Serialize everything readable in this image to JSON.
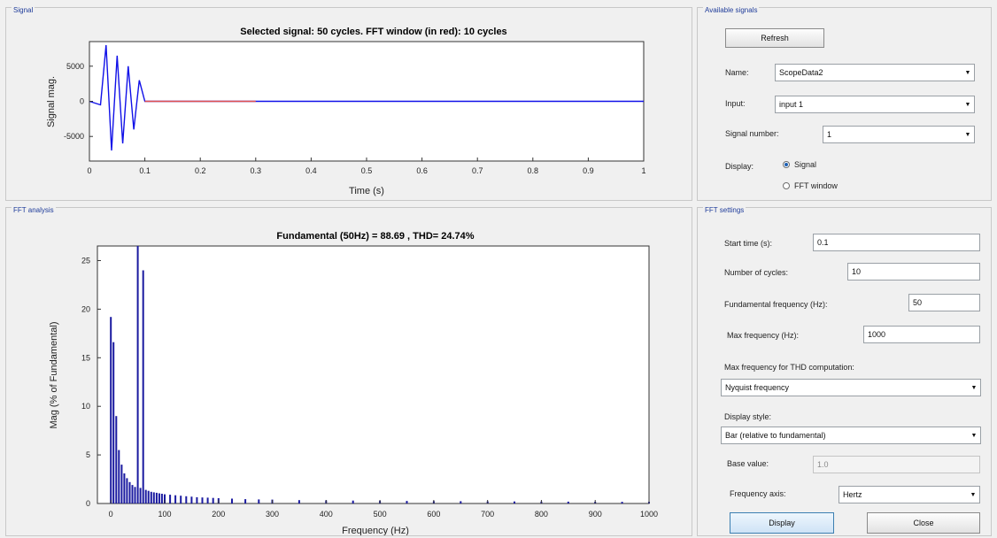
{
  "panels": {
    "signal": "Signal",
    "fft": "FFT analysis",
    "available": "Available signals",
    "settings": "FFT settings"
  },
  "signal_plot": {
    "title": "Selected signal: 50 cycles. FFT window (in red): 10 cycles",
    "xlabel": "Time (s)",
    "ylabel": "Signal mag.",
    "xticks": [
      "0",
      "0.1",
      "0.2",
      "0.3",
      "0.4",
      "0.5",
      "0.6",
      "0.7",
      "0.8",
      "0.9",
      "1"
    ],
    "yticks": [
      "5000",
      "0",
      "-5000"
    ]
  },
  "fft_plot": {
    "title": "Fundamental (50Hz) = 88.69 , THD= 24.74%",
    "xlabel": "Frequency (Hz)",
    "ylabel": "Mag (% of Fundamental)",
    "xticks": [
      "0",
      "100",
      "200",
      "300",
      "400",
      "500",
      "600",
      "700",
      "800",
      "900",
      "1000"
    ],
    "yticks": [
      "25",
      "20",
      "15",
      "10",
      "5",
      "0"
    ]
  },
  "chart_data": [
    {
      "type": "line",
      "title": "Selected signal: 50 cycles. FFT window (in red): 10 cycles",
      "xlabel": "Time (s)",
      "ylabel": "Signal mag.",
      "xlim": [
        0,
        1
      ],
      "ylim": [
        -8500,
        8500
      ],
      "grid": false,
      "series": [
        {
          "color": "#1010e8",
          "x": [
            0,
            0.02,
            0.03,
            0.04,
            0.05,
            0.06,
            0.07,
            0.08,
            0.09,
            0.1,
            1
          ],
          "y": [
            0,
            -500,
            8000,
            -7000,
            6500,
            -6000,
            5000,
            -4000,
            3000,
            0,
            0
          ]
        },
        {
          "color": "#e05050",
          "x": [
            0.1,
            0.3
          ],
          "y": [
            0,
            0
          ]
        }
      ]
    },
    {
      "type": "bar",
      "title": "Fundamental (50Hz) = 88.69 , THD= 24.74%",
      "xlabel": "Frequency (Hz)",
      "ylabel": "Mag (% of Fundamental)",
      "xlim": [
        -25,
        1000
      ],
      "ylim": [
        0,
        26.5
      ],
      "color": "#1a1aa0",
      "x": [
        0,
        5,
        10,
        15,
        20,
        25,
        30,
        35,
        40,
        45,
        50,
        55,
        60,
        65,
        70,
        75,
        80,
        85,
        90,
        95,
        100,
        110,
        120,
        130,
        140,
        150,
        160,
        170,
        180,
        190,
        200,
        225,
        250,
        275,
        300,
        350,
        400,
        450,
        500,
        550,
        600,
        650,
        700,
        750,
        800,
        850,
        900,
        950,
        1000
      ],
      "values": [
        19.2,
        16.6,
        9,
        5.5,
        4,
        3.1,
        2.6,
        2.2,
        1.9,
        1.7,
        26.5,
        1.6,
        24,
        1.4,
        1.3,
        1.2,
        1.15,
        1.1,
        1.05,
        1,
        0.95,
        0.9,
        0.85,
        0.8,
        0.75,
        0.7,
        0.65,
        0.62,
        0.6,
        0.57,
        0.55,
        0.5,
        0.45,
        0.42,
        0.4,
        0.35,
        0.32,
        0.3,
        0.28,
        0.26,
        0.25,
        0.24,
        0.22,
        0.21,
        0.2,
        0.19,
        0.18,
        0.17,
        0.16
      ]
    }
  ],
  "available": {
    "refresh": "Refresh",
    "name_label": "Name:",
    "name_value": "ScopeData2",
    "input_label": "Input:",
    "input_value": "input 1",
    "signal_number_label": "Signal number:",
    "signal_number_value": "1",
    "display_label": "Display:",
    "radio_signal": "Signal",
    "radio_fft": "FFT window"
  },
  "settings": {
    "start_time_label": "Start time (s):",
    "start_time_value": "0.1",
    "cycles_label": "Number of cycles:",
    "cycles_value": "10",
    "fund_label": "Fundamental frequency (Hz):",
    "fund_value": "50",
    "maxf_label": "Max frequency (Hz):",
    "maxf_value": "1000",
    "thd_label": "Max frequency for THD computation:",
    "thd_value": "Nyquist frequency",
    "style_label": "Display style:",
    "style_value": "Bar (relative to fundamental)",
    "base_label": "Base value:",
    "base_value": "1.0",
    "axis_label": "Frequency axis:",
    "axis_value": "Hertz",
    "display_btn": "Display",
    "close_btn": "Close"
  }
}
